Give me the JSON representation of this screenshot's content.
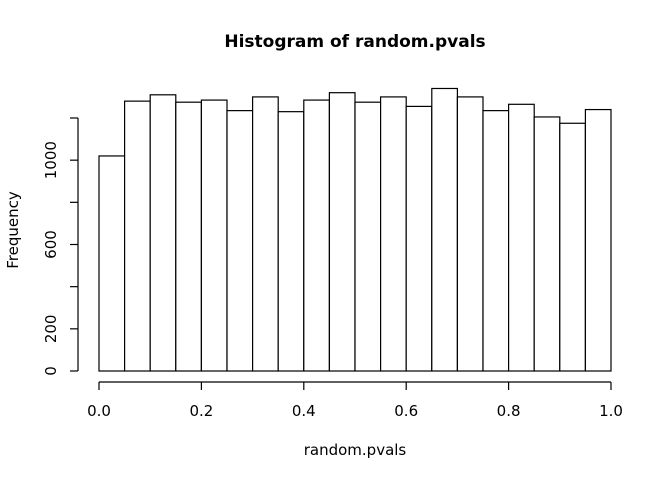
{
  "chart_data": {
    "type": "bar",
    "title": "Histogram of random.pvals",
    "xlabel": "random.pvals",
    "ylabel": "Frequency",
    "bin_edges": [
      0.0,
      0.05,
      0.1,
      0.15,
      0.2,
      0.25,
      0.3,
      0.35,
      0.4,
      0.45,
      0.5,
      0.55,
      0.6,
      0.65,
      0.7,
      0.75,
      0.8,
      0.85,
      0.9,
      0.95,
      1.0
    ],
    "values": [
      1020,
      1280,
      1310,
      1275,
      1285,
      1235,
      1300,
      1230,
      1285,
      1320,
      1275,
      1300,
      1255,
      1340,
      1300,
      1235,
      1265,
      1205,
      1175,
      1240
    ],
    "xlim": [
      0.0,
      1.0
    ],
    "ylim": [
      0,
      1300
    ],
    "x_ticks": [
      0.0,
      0.2,
      0.4,
      0.6,
      0.8,
      1.0
    ],
    "x_tick_labels": [
      "0.0",
      "0.2",
      "0.4",
      "0.6",
      "0.8",
      "1.0"
    ],
    "y_ticks": [
      0,
      200,
      400,
      600,
      800,
      1000,
      1200
    ],
    "y_tick_labels": [
      "0",
      "200",
      "",
      "600",
      "",
      "1000",
      ""
    ],
    "grid": false,
    "legend": "none"
  }
}
